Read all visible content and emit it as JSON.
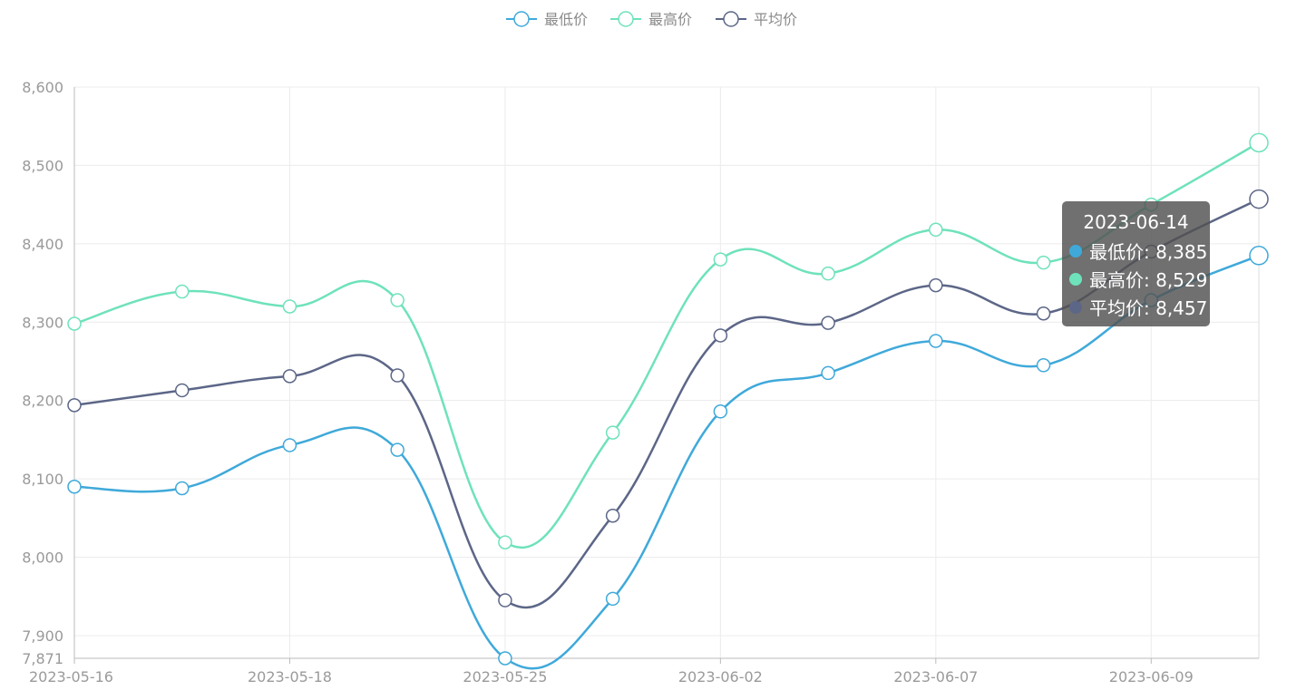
{
  "chart_data": {
    "type": "line",
    "smooth": true,
    "legend_position": "top-center",
    "grid": true,
    "ylim": [
      7871,
      8600
    ],
    "y_ticks": [
      "7,871",
      "7,900",
      "8,000",
      "8,100",
      "8,200",
      "8,300",
      "8,400",
      "8,500",
      "8,600"
    ],
    "y_tick_values": [
      7871,
      7900,
      8000,
      8100,
      8200,
      8300,
      8400,
      8500,
      8600
    ],
    "x_tick_labels": [
      "2023-05-16",
      "2023-05-18",
      "2023-05-25",
      "2023-06-02",
      "2023-06-07",
      "2023-06-09"
    ],
    "x_tick_index": [
      0,
      2,
      4,
      6,
      8,
      10
    ],
    "point_count": 12,
    "series": [
      {
        "name": "最低价",
        "color": "#3fa9da",
        "values": [
          8090,
          8088,
          8143,
          8137,
          7871,
          7947,
          8186,
          8235,
          8276,
          8245,
          8328,
          8385
        ]
      },
      {
        "name": "最高价",
        "color": "#6ee2bb",
        "values": [
          8298,
          8339,
          8320,
          8328,
          8019,
          8159,
          8380,
          8362,
          8418,
          8376,
          8450,
          8529
        ]
      },
      {
        "name": "平均价",
        "color": "#5c6687",
        "values": [
          8194,
          8213,
          8231,
          8232,
          7945,
          8053,
          8283,
          8299,
          8347,
          8311,
          8390,
          8457
        ]
      }
    ],
    "tooltip": {
      "title": "2023-06-14",
      "rows": [
        {
          "label": "最低价: 8,385",
          "color": "#3fa9da"
        },
        {
          "label": "最高价: 8,529",
          "color": "#6ee2bb"
        },
        {
          "label": "平均价: 8,457",
          "color": "#5c6687"
        }
      ]
    }
  }
}
